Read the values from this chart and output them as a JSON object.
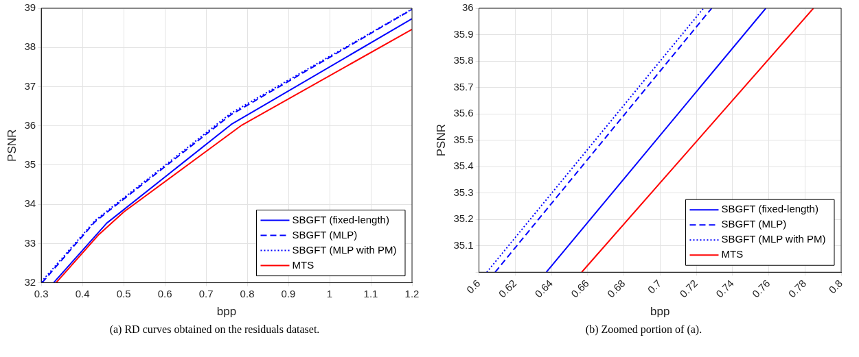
{
  "chart_data": [
    {
      "type": "line",
      "xlabel": "bpp",
      "ylabel": "PSNR",
      "xlim": [
        0.3,
        1.2
      ],
      "ylim": [
        32,
        39
      ],
      "xticks": [
        0.3,
        0.4,
        0.5,
        0.6,
        0.7,
        0.8,
        0.9,
        1,
        1.1,
        1.2
      ],
      "yticks": [
        32,
        33,
        34,
        35,
        36,
        37,
        38,
        39
      ],
      "grid": true,
      "legend": "bottom right",
      "series": [
        {
          "name": "SBGFT (fixed-length)",
          "color": "#0000ff",
          "line_style": "solid",
          "x": [
            0.33,
            0.459,
            0.763,
            1.2
          ],
          "values": [
            32,
            33.52,
            36.05,
            38.73
          ]
        },
        {
          "name": "SBGFT (MLP)",
          "color": "#0000ff",
          "line_style": "dashed",
          "x": [
            0.302,
            0.43,
            0.46,
            0.76,
            1.2
          ],
          "values": [
            32,
            33.55,
            33.8,
            36.28,
            38.97
          ]
        },
        {
          "name": "SBGFT (MLP with PM)",
          "color": "#0000ff",
          "line_style": "dotted",
          "x": [
            0.3,
            0.43,
            0.46,
            0.76,
            1.2
          ],
          "values": [
            32.02,
            33.58,
            33.83,
            36.32,
            38.98
          ]
        },
        {
          "name": "MTS",
          "color": "#ff0000",
          "line_style": "solid",
          "x": [
            0.336,
            0.44,
            0.501,
            0.787,
            1.2
          ],
          "values": [
            32,
            33.23,
            33.81,
            36.02,
            38.46
          ]
        }
      ],
      "annotations": [
        "(a) RD curves obtained on the residuals dataset."
      ]
    },
    {
      "type": "line",
      "xlabel": "bpp",
      "ylabel": "PSNR",
      "xlim": [
        0.6,
        0.8
      ],
      "ylim": [
        35,
        36
      ],
      "xticks": [
        0.6,
        0.62,
        0.64,
        0.66,
        0.68,
        0.7,
        0.72,
        0.74,
        0.76,
        0.78,
        0.8
      ],
      "yticks": [
        {
          "value": 35,
          "label": null
        },
        35.1,
        35.2,
        35.3,
        35.4,
        35.5,
        35.6,
        35.7,
        35.8,
        35.9,
        36
      ],
      "grid": true,
      "legend": "bottom right",
      "series": [
        {
          "name": "SBGFT (fixed-length)",
          "color": "#0000ff",
          "line_style": "solid",
          "x": [
            0.6372,
            0.7584
          ],
          "values": [
            35,
            36
          ]
        },
        {
          "name": "SBGFT (MLP)",
          "color": "#0000ff",
          "line_style": "dashed",
          "x": [
            0.6089,
            0.7285
          ],
          "values": [
            35,
            36
          ]
        },
        {
          "name": "SBGFT (MLP with PM)",
          "color": "#0000ff",
          "line_style": "dotted",
          "x": [
            0.6043,
            0.724
          ],
          "values": [
            35,
            36
          ]
        },
        {
          "name": "MTS",
          "color": "#ff0000",
          "line_style": "solid",
          "x": [
            0.6567,
            0.7847
          ],
          "values": [
            35,
            36
          ]
        }
      ],
      "annotations": [
        "(b) Zoomed portion of (a)."
      ]
    }
  ]
}
